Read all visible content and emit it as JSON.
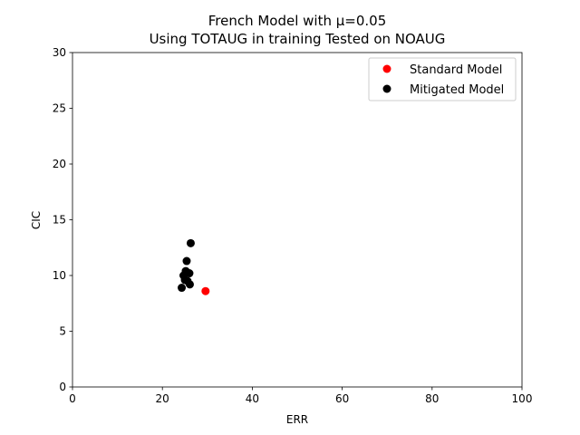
{
  "chart_data": {
    "type": "scatter",
    "title_line1": "French Model with μ=0.05",
    "title_line2": "Using TOTAUG in training Tested on NOAUG",
    "xlabel": "ERR",
    "ylabel": "CIC",
    "xlim": [
      0,
      100
    ],
    "ylim": [
      0,
      30
    ],
    "xticks": [
      0,
      20,
      40,
      60,
      80,
      100
    ],
    "yticks": [
      0,
      5,
      10,
      15,
      20,
      25,
      30
    ],
    "grid": false,
    "legend_position": "top-right",
    "series": [
      {
        "name": "Standard Model",
        "color": "#ff0000",
        "points": [
          {
            "x": 29.6,
            "y": 8.6
          }
        ]
      },
      {
        "name": "Mitigated Model",
        "color": "#000000",
        "points": [
          {
            "x": 26.3,
            "y": 12.9
          },
          {
            "x": 25.4,
            "y": 11.3
          },
          {
            "x": 25.2,
            "y": 10.4
          },
          {
            "x": 26.0,
            "y": 10.2
          },
          {
            "x": 24.7,
            "y": 10.0
          },
          {
            "x": 25.0,
            "y": 9.6
          },
          {
            "x": 25.6,
            "y": 9.5
          },
          {
            "x": 26.1,
            "y": 9.2
          },
          {
            "x": 24.3,
            "y": 8.9
          }
        ]
      }
    ]
  }
}
